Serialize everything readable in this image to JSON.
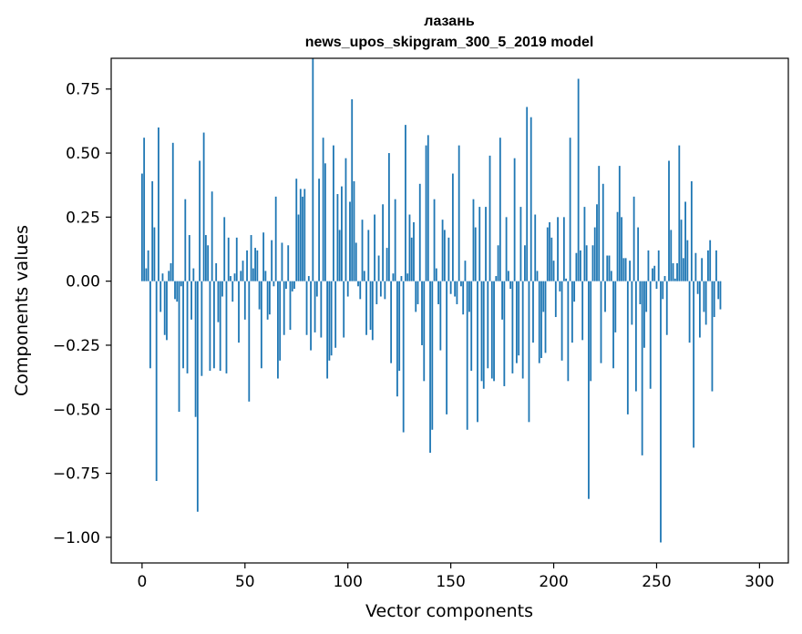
{
  "chart_data": {
    "type": "bar",
    "title": "лазань",
    "subtitle": "news_upos_skipgram_300_5_2019 model",
    "xlabel": "Vector components",
    "ylabel": "Components values",
    "xlim": [
      -15,
      314
    ],
    "ylim": [
      -1.1,
      0.87
    ],
    "xticks": [
      0,
      50,
      100,
      150,
      200,
      250,
      300
    ],
    "yticks": [
      -1.0,
      -0.75,
      -0.5,
      -0.25,
      0.0,
      0.25,
      0.5,
      0.75
    ],
    "xtick_labels": [
      "0",
      "50",
      "100",
      "150",
      "200",
      "250",
      "300"
    ],
    "ytick_labels": [
      "−1.00",
      "−0.75",
      "−0.50",
      "−0.25",
      "0.00",
      "0.25",
      "0.50",
      "0.75"
    ],
    "bar_color": "#1f77b4",
    "values": [
      0.42,
      0.56,
      0.05,
      0.12,
      -0.34,
      0.39,
      0.21,
      -0.78,
      0.6,
      -0.12,
      0.03,
      -0.21,
      -0.23,
      0.04,
      0.07,
      0.54,
      -0.07,
      -0.08,
      -0.51,
      -0.02,
      -0.34,
      0.32,
      -0.36,
      0.18,
      -0.15,
      0.05,
      -0.53,
      -0.9,
      0.47,
      -0.37,
      0.58,
      0.18,
      0.14,
      -0.35,
      0.35,
      -0.34,
      0.07,
      -0.16,
      -0.35,
      -0.06,
      0.25,
      -0.36,
      0.17,
      0.02,
      -0.08,
      0.03,
      0.17,
      -0.24,
      0.04,
      0.08,
      -0.15,
      0.12,
      -0.47,
      0.18,
      0.05,
      0.13,
      0.12,
      -0.11,
      -0.34,
      0.19,
      0.04,
      -0.15,
      -0.13,
      0.16,
      -0.02,
      0.33,
      -0.38,
      -0.31,
      0.15,
      -0.21,
      -0.03,
      0.14,
      -0.19,
      -0.04,
      -0.03,
      0.4,
      0.26,
      0.36,
      0.33,
      0.36,
      -0.21,
      0.02,
      -0.27,
      0.87,
      -0.2,
      -0.06,
      0.4,
      -0.22,
      0.56,
      0.46,
      -0.38,
      -0.31,
      -0.29,
      0.53,
      -0.26,
      0.34,
      0.2,
      0.37,
      -0.22,
      0.48,
      -0.06,
      0.31,
      0.71,
      0.39,
      0.15,
      -0.02,
      -0.07,
      0.24,
      0.04,
      -0.21,
      0.2,
      -0.19,
      -0.23,
      0.26,
      -0.09,
      0.1,
      -0.06,
      0.3,
      -0.07,
      0.13,
      0.5,
      -0.32,
      0.03,
      0.32,
      -0.45,
      -0.35,
      0.02,
      -0.59,
      0.61,
      0.03,
      0.26,
      0.17,
      0.23,
      -0.12,
      -0.09,
      0.38,
      -0.25,
      -0.39,
      0.53,
      0.57,
      -0.67,
      -0.58,
      0.32,
      0.05,
      -0.09,
      -0.27,
      0.24,
      0.2,
      -0.52,
      0.17,
      -0.05,
      0.42,
      -0.06,
      -0.09,
      0.53,
      -0.02,
      -0.13,
      0.08,
      -0.58,
      -0.12,
      -0.35,
      0.32,
      0.21,
      -0.55,
      0.29,
      -0.39,
      -0.42,
      0.29,
      -0.34,
      0.49,
      -0.38,
      -0.39,
      0.02,
      0.14,
      0.56,
      -0.15,
      -0.41,
      0.25,
      0.04,
      -0.03,
      -0.36,
      0.48,
      -0.32,
      -0.29,
      0.29,
      -0.38,
      0.14,
      0.68,
      -0.55,
      0.64,
      -0.24,
      0.26,
      0.04,
      -0.32,
      -0.3,
      -0.12,
      -0.28,
      0.21,
      0.23,
      0.17,
      0.08,
      -0.14,
      0.25,
      -0.04,
      -0.31,
      0.25,
      0.01,
      -0.39,
      0.56,
      -0.24,
      -0.08,
      0.11,
      0.79,
      0.12,
      -0.23,
      0.29,
      0.14,
      -0.85,
      -0.39,
      0.14,
      0.21,
      0.3,
      0.45,
      -0.32,
      0.38,
      -0.12,
      0.1,
      0.1,
      0.04,
      -0.34,
      -0.2,
      0.27,
      0.45,
      0.25,
      0.09,
      0.09,
      -0.52,
      0.08,
      -0.17,
      0.33,
      -0.43,
      0.21,
      -0.09,
      -0.68,
      -0.26,
      -0.12,
      0.12,
      -0.42,
      0.05,
      0.06,
      -0.03,
      0.12,
      -1.02,
      -0.07,
      0.02,
      -0.21,
      0.47,
      0.2,
      0.07,
      0.01,
      0.07,
      0.53,
      0.24,
      0.09,
      0.31,
      0.16,
      -0.24,
      0.39,
      -0.65,
      0.11,
      -0.05,
      -0.22,
      0.09,
      -0.12,
      -0.17,
      0.12,
      0.16,
      -0.43,
      -0.14,
      0.12,
      -0.07,
      -0.11
    ]
  }
}
